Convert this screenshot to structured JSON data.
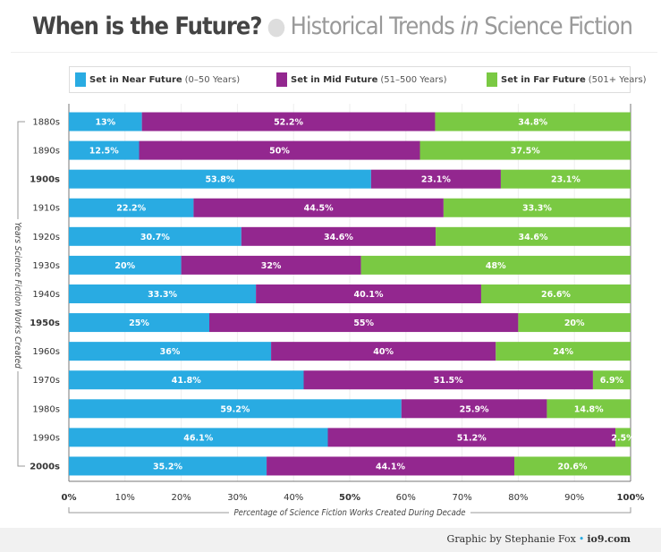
{
  "title": {
    "main": "When is the Future?",
    "sub_pre": "Historical Trends ",
    "sub_em": "in",
    "sub_post": " Science Fiction"
  },
  "legend": [
    {
      "bold": "Set in Near Future",
      "range": "(0–50 Years)",
      "color": "#29abe2"
    },
    {
      "bold": "Set in Mid Future",
      "range": "(51–500 Years)",
      "color": "#93278f"
    },
    {
      "bold": "Set in Far Future",
      "range": "(501+ Years)",
      "color": "#7ac943"
    }
  ],
  "credit": {
    "by": "Graphic by Stephanie Fox",
    "site": "io9.com"
  },
  "chart_data": {
    "type": "bar",
    "stacked": true,
    "orientation": "horizontal",
    "xlabel": "Percentage of Science Fiction Works Created During Decade",
    "ylabel": "Years Science Fiction Works Created",
    "xlim": [
      0,
      100
    ],
    "xticks": [
      "0%",
      "10%",
      "20%",
      "30%",
      "40%",
      "50%",
      "60%",
      "70%",
      "80%",
      "90%",
      "100%"
    ],
    "bold_xticks": [
      "0%",
      "50%",
      "100%"
    ],
    "categories": [
      "1880s",
      "1890s",
      "1900s",
      "1910s",
      "1920s",
      "1930s",
      "1940s",
      "1950s",
      "1960s",
      "1970s",
      "1980s",
      "1990s",
      "2000s"
    ],
    "bold_categories": [
      "1900s",
      "1950s",
      "2000s"
    ],
    "grid": true,
    "series": [
      {
        "name": "Set in Near Future (0–50 Years)",
        "color": "#29abe2",
        "values": [
          13,
          12.5,
          53.8,
          22.2,
          30.7,
          20,
          33.3,
          25,
          36,
          41.8,
          59.2,
          46.1,
          35.2
        ],
        "labels": [
          "13%",
          "12.5%",
          "53.8%",
          "22.2%",
          "30.7%",
          "20%",
          "33.3%",
          "25%",
          "36%",
          "41.8%",
          "59.2%",
          "46.1%",
          "35.2%"
        ]
      },
      {
        "name": "Set in Mid Future (51–500 Years)",
        "color": "#93278f",
        "values": [
          52.2,
          50,
          23.1,
          44.5,
          34.6,
          32,
          40.1,
          55,
          40,
          51.5,
          25.9,
          51.2,
          44.1
        ],
        "labels": [
          "52.2%",
          "50%",
          "23.1%",
          "44.5%",
          "34.6%",
          "32%",
          "40.1%",
          "55%",
          "40%",
          "51.5%",
          "25.9%",
          "51.2%",
          "44.1%"
        ]
      },
      {
        "name": "Set in Far Future (501+ Years)",
        "color": "#7ac943",
        "values": [
          34.8,
          37.5,
          23.1,
          33.3,
          34.6,
          48,
          26.6,
          20,
          24,
          6.9,
          14.8,
          2.5,
          20.6
        ],
        "labels": [
          "34.8%",
          "37.5%",
          "23.1%",
          "33.3%",
          "34.6%",
          "48%",
          "26.6%",
          "20%",
          "24%",
          "6.9%",
          "14.8%",
          "2.5%",
          "20.6%"
        ]
      }
    ]
  }
}
